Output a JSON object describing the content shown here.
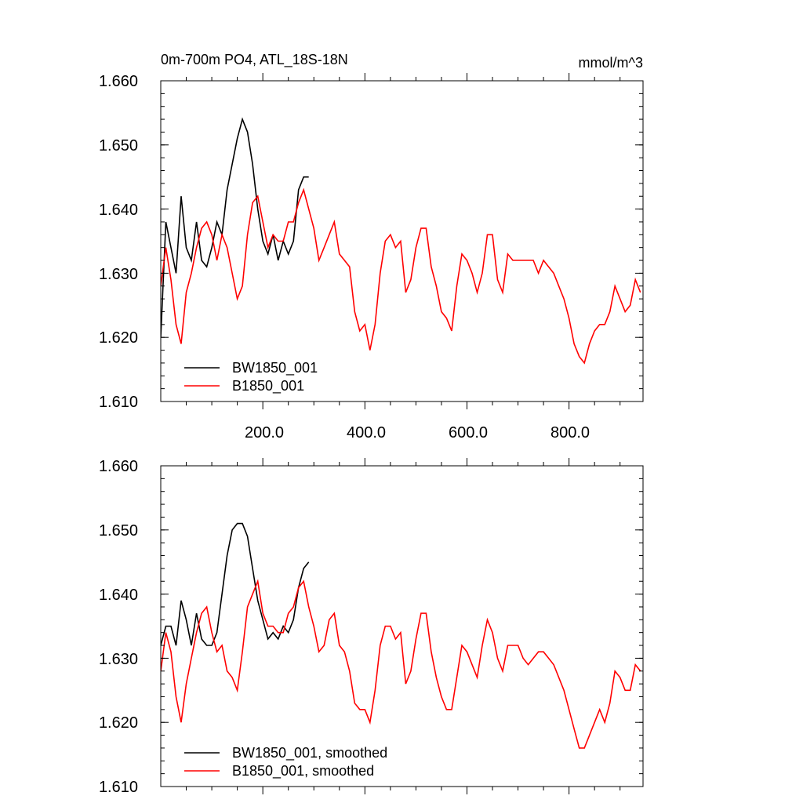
{
  "colors": {
    "black_series": "#000000",
    "red_series": "#ff0000",
    "axis": "#000000",
    "background": "#ffffff"
  },
  "chart_data": [
    {
      "type": "line",
      "title": "0m-700m PO4, ATL_18S-18N",
      "units_label": "mmol/m^3",
      "xlabel": "",
      "ylabel": "",
      "xlim": [
        0,
        945
      ],
      "ylim": [
        1.61,
        1.66
      ],
      "x_ticks": [
        200,
        400,
        600,
        800
      ],
      "x_tick_labels": [
        "200.0",
        "400.0",
        "600.0",
        "800.0"
      ],
      "y_ticks": [
        1.61,
        1.62,
        1.63,
        1.64,
        1.65,
        1.66
      ],
      "y_tick_labels": [
        "1.610",
        "1.620",
        "1.630",
        "1.640",
        "1.650",
        "1.660"
      ],
      "grid": false,
      "legend_position": "bottom-left",
      "series": [
        {
          "name": "BW1850_001",
          "color": "#000000",
          "x": [
            0,
            10,
            20,
            30,
            40,
            50,
            60,
            70,
            80,
            90,
            100,
            110,
            120,
            130,
            140,
            150,
            160,
            170,
            180,
            190,
            200,
            210,
            220,
            230,
            240,
            250,
            260,
            270,
            280,
            290
          ],
          "values": [
            1.62,
            1.638,
            1.634,
            1.63,
            1.642,
            1.634,
            1.632,
            1.638,
            1.632,
            1.631,
            1.634,
            1.638,
            1.636,
            1.643,
            1.647,
            1.651,
            1.654,
            1.652,
            1.647,
            1.64,
            1.635,
            1.633,
            1.636,
            1.632,
            1.635,
            1.633,
            1.635,
            1.643,
            1.645,
            1.645
          ]
        },
        {
          "name": "B1850_001",
          "color": "#ff0000",
          "x": [
            0,
            10,
            20,
            30,
            40,
            50,
            60,
            70,
            80,
            90,
            100,
            110,
            120,
            130,
            140,
            150,
            160,
            170,
            180,
            190,
            200,
            210,
            220,
            230,
            240,
            250,
            260,
            270,
            280,
            290,
            300,
            310,
            320,
            330,
            340,
            350,
            360,
            370,
            380,
            390,
            400,
            410,
            420,
            430,
            440,
            450,
            460,
            470,
            480,
            490,
            500,
            510,
            520,
            530,
            540,
            550,
            560,
            570,
            580,
            590,
            600,
            610,
            620,
            630,
            640,
            650,
            660,
            670,
            680,
            690,
            700,
            710,
            720,
            730,
            740,
            750,
            760,
            770,
            780,
            790,
            800,
            810,
            820,
            830,
            840,
            850,
            860,
            870,
            880,
            890,
            900,
            910,
            920,
            930,
            940
          ],
          "values": [
            1.628,
            1.634,
            1.629,
            1.622,
            1.619,
            1.627,
            1.63,
            1.634,
            1.637,
            1.638,
            1.636,
            1.632,
            1.636,
            1.634,
            1.63,
            1.626,
            1.628,
            1.636,
            1.641,
            1.642,
            1.638,
            1.634,
            1.636,
            1.635,
            1.635,
            1.638,
            1.638,
            1.641,
            1.643,
            1.64,
            1.637,
            1.632,
            1.634,
            1.636,
            1.638,
            1.633,
            1.632,
            1.631,
            1.624,
            1.621,
            1.622,
            1.618,
            1.622,
            1.63,
            1.635,
            1.636,
            1.634,
            1.635,
            1.627,
            1.629,
            1.634,
            1.637,
            1.637,
            1.631,
            1.628,
            1.624,
            1.623,
            1.621,
            1.628,
            1.633,
            1.632,
            1.63,
            1.627,
            1.63,
            1.636,
            1.636,
            1.629,
            1.627,
            1.633,
            1.632,
            1.632,
            1.632,
            1.632,
            1.632,
            1.63,
            1.632,
            1.631,
            1.63,
            1.628,
            1.626,
            1.623,
            1.619,
            1.617,
            1.616,
            1.619,
            1.621,
            1.622,
            1.622,
            1.624,
            1.628,
            1.626,
            1.624,
            1.625,
            1.629,
            1.627
          ]
        }
      ]
    },
    {
      "type": "line",
      "title": "",
      "xlabel": "",
      "ylabel": "",
      "xlim": [
        0,
        945
      ],
      "ylim": [
        1.61,
        1.66
      ],
      "x_ticks": [
        200,
        400,
        600,
        800
      ],
      "y_ticks": [
        1.61,
        1.62,
        1.63,
        1.64,
        1.65,
        1.66
      ],
      "y_tick_labels": [
        "1.610",
        "1.620",
        "1.630",
        "1.640",
        "1.650",
        "1.660"
      ],
      "grid": false,
      "legend_position": "bottom-left",
      "series": [
        {
          "name": "BW1850_001, smoothed",
          "color": "#000000",
          "x": [
            0,
            10,
            20,
            30,
            40,
            50,
            60,
            70,
            80,
            90,
            100,
            110,
            120,
            130,
            140,
            150,
            160,
            170,
            180,
            190,
            200,
            210,
            220,
            230,
            240,
            250,
            260,
            270,
            280,
            290
          ],
          "values": [
            1.632,
            1.635,
            1.635,
            1.632,
            1.639,
            1.636,
            1.632,
            1.637,
            1.633,
            1.632,
            1.632,
            1.634,
            1.64,
            1.646,
            1.65,
            1.651,
            1.651,
            1.649,
            1.644,
            1.639,
            1.636,
            1.633,
            1.634,
            1.633,
            1.635,
            1.634,
            1.636,
            1.641,
            1.644,
            1.645
          ]
        },
        {
          "name": "B1850_001, smoothed",
          "color": "#ff0000",
          "x": [
            0,
            10,
            20,
            30,
            40,
            50,
            60,
            70,
            80,
            90,
            100,
            110,
            120,
            130,
            140,
            150,
            160,
            170,
            180,
            190,
            200,
            210,
            220,
            230,
            240,
            250,
            260,
            270,
            280,
            290,
            300,
            310,
            320,
            330,
            340,
            350,
            360,
            370,
            380,
            390,
            400,
            410,
            420,
            430,
            440,
            450,
            460,
            470,
            480,
            490,
            500,
            510,
            520,
            530,
            540,
            550,
            560,
            570,
            580,
            590,
            600,
            610,
            620,
            630,
            640,
            650,
            660,
            670,
            680,
            690,
            700,
            710,
            720,
            730,
            740,
            750,
            760,
            770,
            780,
            790,
            800,
            810,
            820,
            830,
            840,
            850,
            860,
            870,
            880,
            890,
            900,
            910,
            920,
            930,
            940
          ],
          "values": [
            1.628,
            1.634,
            1.631,
            1.624,
            1.62,
            1.626,
            1.63,
            1.634,
            1.637,
            1.638,
            1.634,
            1.631,
            1.632,
            1.628,
            1.627,
            1.625,
            1.631,
            1.638,
            1.64,
            1.642,
            1.637,
            1.635,
            1.635,
            1.634,
            1.634,
            1.637,
            1.638,
            1.641,
            1.642,
            1.638,
            1.635,
            1.631,
            1.632,
            1.636,
            1.637,
            1.632,
            1.631,
            1.628,
            1.623,
            1.622,
            1.622,
            1.62,
            1.625,
            1.632,
            1.635,
            1.635,
            1.633,
            1.634,
            1.626,
            1.628,
            1.633,
            1.637,
            1.637,
            1.631,
            1.627,
            1.624,
            1.622,
            1.622,
            1.627,
            1.632,
            1.631,
            1.629,
            1.627,
            1.632,
            1.636,
            1.634,
            1.63,
            1.628,
            1.632,
            1.632,
            1.632,
            1.63,
            1.629,
            1.63,
            1.631,
            1.631,
            1.63,
            1.629,
            1.627,
            1.625,
            1.622,
            1.619,
            1.616,
            1.616,
            1.618,
            1.62,
            1.622,
            1.62,
            1.623,
            1.628,
            1.627,
            1.625,
            1.625,
            1.629,
            1.628
          ]
        }
      ]
    }
  ]
}
